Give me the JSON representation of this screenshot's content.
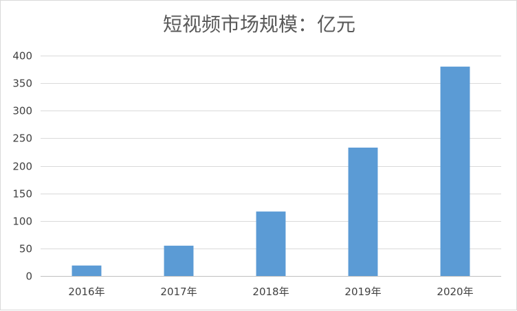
{
  "chart_data": {
    "type": "bar",
    "title": "短视频市场规模：亿元",
    "categories": [
      "2016年",
      "2017年",
      "2018年",
      "2019年",
      "2020年"
    ],
    "series": [
      {
        "values": [
          19,
          55,
          117,
          233,
          380
        ],
        "color": "#5b9bd5"
      }
    ],
    "xlabel": "",
    "ylabel": "",
    "ylim": [
      0,
      400
    ],
    "yticks": [
      0,
      50,
      100,
      150,
      200,
      250,
      300,
      350,
      400
    ],
    "grid": true,
    "legend": "none"
  }
}
